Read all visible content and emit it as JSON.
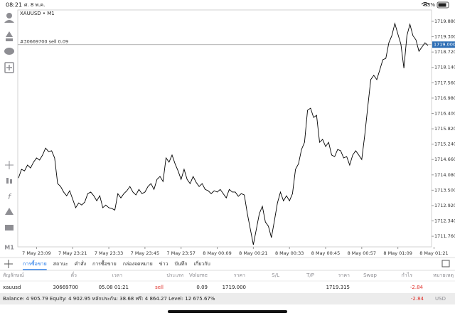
{
  "status_bar": {
    "time": "08:21",
    "date": "ศ. 8 พ.ค.",
    "battery": "83%"
  },
  "toolbar": {
    "timeframe": "M1"
  },
  "chart_data": {
    "type": "line",
    "symbol_label": "XAUUSD • M1",
    "color": "#000000",
    "grid": false,
    "order_line": {
      "label": "#30669700 sell 0.09",
      "price": {
        "value": 1719,
        "label": "1719.000"
      }
    },
    "categories": [
      null,
      null,
      null,
      null,
      null,
      null,
      "7 May 23:09",
      null,
      null,
      null,
      null,
      null,
      null,
      null,
      null,
      null,
      null,
      null,
      "7 May 23:21",
      null,
      null,
      null,
      null,
      null,
      null,
      null,
      null,
      null,
      null,
      null,
      "7 May 23:33",
      null,
      null,
      null,
      null,
      null,
      null,
      null,
      null,
      null,
      null,
      null,
      "7 May 23:45",
      null,
      null,
      null,
      null,
      null,
      null,
      null,
      null,
      null,
      null,
      null,
      "7 May 23:57",
      null,
      null,
      null,
      null,
      null,
      null,
      null,
      null,
      null,
      null,
      null,
      "8 May 00:09",
      null,
      null,
      null,
      null,
      null,
      null,
      null,
      null,
      null,
      null,
      null,
      "8 May 00:21",
      null,
      null,
      null,
      null,
      null,
      null,
      null,
      null,
      null,
      null,
      null,
      "8 May 00:33",
      null,
      null,
      null,
      null,
      null,
      null,
      null,
      null,
      null,
      null,
      null,
      "8 May 00:45",
      null,
      null,
      null,
      null,
      null,
      null,
      null,
      null,
      null,
      null,
      null,
      "8 May 00:57",
      null,
      null,
      null,
      null,
      null,
      null,
      null,
      null,
      null,
      null,
      null,
      "8 May 01:09",
      null,
      null,
      null,
      null,
      null,
      null,
      null,
      null,
      null,
      null,
      null,
      "8 May 01:21"
    ],
    "values": [
      1713.96,
      1714.29,
      1714.23,
      1714.45,
      1714.34,
      1714.56,
      1714.72,
      1714.64,
      1714.83,
      1715.09,
      1714.96,
      1714.99,
      1714.72,
      1713.75,
      1713.64,
      1713.43,
      1713.29,
      1713.48,
      1713.16,
      1712.84,
      1713.02,
      1712.94,
      1713.05,
      1713.37,
      1713.43,
      1713.29,
      1713.1,
      1713.29,
      1712.84,
      1712.94,
      1712.84,
      1712.81,
      1712.75,
      1713.37,
      1713.21,
      1713.37,
      1713.48,
      1713.64,
      1713.43,
      1713.32,
      1713.53,
      1713.37,
      1713.43,
      1713.64,
      1713.75,
      1713.53,
      1713.91,
      1714.02,
      1713.83,
      1714.72,
      1714.56,
      1714.83,
      1714.5,
      1714.23,
      1713.91,
      1714.29,
      1713.91,
      1713.75,
      1714.02,
      1713.8,
      1713.64,
      1713.75,
      1713.53,
      1713.48,
      1713.37,
      1713.48,
      1713.43,
      1713.53,
      1713.37,
      1713.21,
      1713.53,
      1713.43,
      1713.43,
      1713.27,
      1713.37,
      1713.32,
      1712.62,
      1712.03,
      1711.44,
      1712.03,
      1712.62,
      1712.89,
      1712.3,
      1712.14,
      1711.71,
      1712.35,
      1713.02,
      1713.43,
      1713.1,
      1713.29,
      1713.1,
      1713.37,
      1714.29,
      1714.5,
      1715.04,
      1715.31,
      1716.52,
      1716.6,
      1716.25,
      1716.33,
      1715.31,
      1715.42,
      1715.15,
      1715.31,
      1714.83,
      1714.77,
      1715.04,
      1714.99,
      1714.72,
      1714.77,
      1714.45,
      1714.83,
      1714.99,
      1714.83,
      1714.66,
      1715.58,
      1716.65,
      1717.68,
      1717.84,
      1717.68,
      1718.05,
      1718.43,
      1718.48,
      1719.07,
      1719.34,
      1719.8,
      1719.4,
      1719.02,
      1718.11,
      1719.34,
      1719.77,
      1719.34,
      1719.18,
      1718.75,
      1718.91,
      1719.07,
      1718.97,
      null,
      null
    ],
    "ylim": [
      1711.36,
      1720.31
    ],
    "yticks": [
      {
        "value": 1719.88,
        "label": "1719.880"
      },
      {
        "value": 1719.3,
        "label": "1719.300"
      },
      {
        "value": 1718.72,
        "label": "1718.720"
      },
      {
        "value": 1718.14,
        "label": "1718.140"
      },
      {
        "value": 1717.56,
        "label": "1717.560"
      },
      {
        "value": 1716.98,
        "label": "1716.980"
      },
      {
        "value": 1716.4,
        "label": "1716.400"
      },
      {
        "value": 1715.82,
        "label": "1715.820"
      },
      {
        "value": 1715.24,
        "label": "1715.240"
      },
      {
        "value": 1714.66,
        "label": "1714.660"
      },
      {
        "value": 1714.08,
        "label": "1714.080"
      },
      {
        "value": 1713.5,
        "label": "1713.500"
      },
      {
        "value": 1712.92,
        "label": "1712.920"
      },
      {
        "value": 1712.34,
        "label": "1712.340"
      },
      {
        "value": 1711.76,
        "label": "1711.760"
      }
    ]
  },
  "tabs": [
    "การซื้อขาย",
    "สถานะ",
    "คำสั่ง",
    "การซื้อขาย",
    "กล่องจดหมาย",
    "ข่าว",
    "บันทึก",
    "เกี่ยวกับ"
  ],
  "table": {
    "headers": [
      "สัญลักษณ์",
      "ตั๋ว",
      "เวลา",
      "ประเภท",
      "Volume",
      "ราคา",
      "S/L",
      "T/P",
      "ราคา",
      "Swap",
      "กำไร",
      "หมายเหตุ"
    ],
    "rows": [
      {
        "symbol": "xauusd",
        "ticket": "30669700",
        "time": "05.08 01:21",
        "type": "sell",
        "volume": "0.09",
        "open_price": "1719.000",
        "price": "1719.315",
        "profit": "-2.84"
      }
    ]
  },
  "account": {
    "summary": "Balance: 4 905.79 Equity: 4 902.95 หลักประกัน: 38.68 ฟรี: 4 864.27 Level: 12 675.67%",
    "profit": "-2.84",
    "currency": "USD"
  }
}
